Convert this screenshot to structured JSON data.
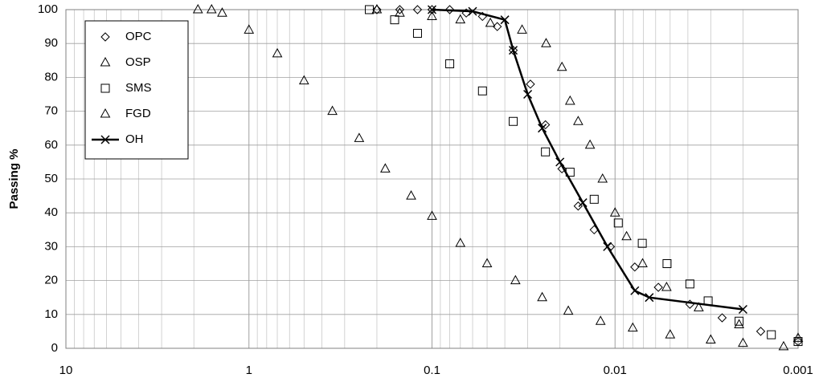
{
  "chart_data": {
    "type": "scatter",
    "ylabel": "Passing %",
    "xscale": "log",
    "grid": true,
    "legend": "upper left",
    "xlim": [
      10,
      0.001
    ],
    "xticks": [
      10,
      1,
      0.1,
      0.01,
      0.001
    ],
    "ylim": [
      0,
      100
    ],
    "yticks": [
      0,
      10,
      20,
      30,
      40,
      50,
      60,
      70,
      80,
      90,
      100
    ],
    "series": [
      {
        "name": "OPC",
        "marker": "diamond",
        "color": "#000000",
        "x": [
          0.2,
          0.15,
          0.12,
          0.1,
          0.08,
          0.065,
          0.053,
          0.044,
          0.036,
          0.029,
          0.024,
          0.0195,
          0.0159,
          0.013,
          0.0106,
          0.0078,
          0.0058,
          0.0039,
          0.0026,
          0.0016,
          0.001
        ],
        "values": [
          100,
          100,
          100,
          100,
          100,
          99,
          98,
          95,
          88,
          78,
          66,
          53,
          42,
          35,
          30,
          24,
          18,
          13,
          9,
          5,
          2
        ]
      },
      {
        "name": "OSP",
        "marker": "triangle",
        "color": "#000000",
        "x": [
          1.9,
          1.6,
          1.4,
          1.0,
          0.7,
          0.5,
          0.35,
          0.25,
          0.18,
          0.13,
          0.1,
          0.07,
          0.05,
          0.035,
          0.025,
          0.018,
          0.012,
          0.008,
          0.005,
          0.003,
          0.002,
          0.0012
        ],
        "values": [
          100,
          100,
          99,
          94,
          87,
          79,
          70,
          62,
          53,
          45,
          39,
          31,
          25,
          20,
          15,
          11,
          8,
          6,
          4,
          2.5,
          1.5,
          0.5
        ]
      },
      {
        "name": "SMS",
        "marker": "square",
        "color": "#000000",
        "x": [
          0.22,
          0.16,
          0.12,
          0.08,
          0.053,
          0.036,
          0.024,
          0.0176,
          0.013,
          0.0096,
          0.0071,
          0.0052,
          0.0039,
          0.0031,
          0.0021,
          0.0014,
          0.001
        ],
        "values": [
          100,
          97,
          93,
          84,
          76,
          67,
          58,
          52,
          44,
          37,
          31,
          25,
          19,
          14,
          8,
          4,
          2
        ]
      },
      {
        "name": "FGD",
        "marker": "triangle",
        "color": "#000000",
        "x": [
          0.2,
          0.15,
          0.1,
          0.07,
          0.048,
          0.0322,
          0.0238,
          0.0195,
          0.0176,
          0.0159,
          0.0137,
          0.0117,
          0.01,
          0.00865,
          0.00707,
          0.00523,
          0.00349,
          0.0021,
          0.001
        ],
        "values": [
          100,
          99,
          98,
          97,
          96,
          94,
          90,
          83,
          73,
          67,
          60,
          50,
          40,
          33,
          25,
          18,
          12,
          7,
          3
        ]
      },
      {
        "name": "OH",
        "marker": "cross",
        "line": true,
        "color": "#000000",
        "x": [
          0.1,
          0.06,
          0.04,
          0.036,
          0.03,
          0.025,
          0.02,
          0.015,
          0.011,
          0.0078,
          0.0065,
          0.002
        ],
        "values": [
          100,
          99.5,
          97,
          88,
          75,
          65,
          55,
          43,
          30,
          17,
          15,
          11.5
        ]
      }
    ]
  }
}
